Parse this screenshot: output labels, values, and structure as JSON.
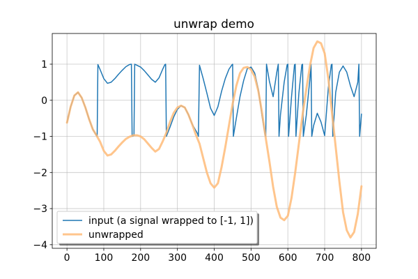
{
  "chart_data": {
    "type": "line",
    "title": "unwrap demo",
    "xlabel": "",
    "ylabel": "",
    "xlim": [
      -40,
      840
    ],
    "ylim": [
      -4.1,
      1.85
    ],
    "xticks": [
      0,
      100,
      200,
      300,
      400,
      500,
      600,
      700,
      800
    ],
    "yticks": [
      1,
      0,
      -1,
      -2,
      -3,
      -4
    ],
    "xtick_labels": [
      "0",
      "100",
      "200",
      "300",
      "400",
      "500",
      "600",
      "700",
      "800"
    ],
    "ytick_labels": [
      "1",
      "0",
      "−1",
      "−2",
      "−3",
      "−4"
    ],
    "grid": true,
    "legend_position": "lower-left",
    "series": [
      {
        "name": "input (a signal wrapped to [-1, 1])",
        "color": "#1f77b4",
        "x": [
          0,
          10,
          20,
          30,
          40,
          50,
          60,
          70,
          80,
          82,
          84,
          90,
          100,
          110,
          120,
          130,
          140,
          150,
          160,
          170,
          175,
          177,
          180,
          182,
          184,
          190,
          200,
          210,
          220,
          230,
          240,
          250,
          260,
          266,
          268,
          270,
          280,
          290,
          300,
          310,
          320,
          330,
          340,
          355,
          357,
          360,
          370,
          380,
          390,
          400,
          410,
          420,
          430,
          440,
          448,
          450,
          452,
          460,
          470,
          480,
          490,
          500,
          510,
          520,
          530,
          538,
          540,
          542,
          550,
          560,
          570,
          574,
          576,
          580,
          590,
          598,
          600,
          602,
          610,
          618,
          620,
          622,
          630,
          638,
          640,
          642,
          650,
          660,
          663,
          665,
          670,
          680,
          690,
          700,
          710,
          718,
          720,
          722,
          730,
          740,
          750,
          760,
          770,
          780,
          790,
          793,
          795,
          800
        ],
        "y": [
          -0.62,
          -0.18,
          0.13,
          0.22,
          0.07,
          -0.2,
          -0.52,
          -0.8,
          -0.97,
          -1.0,
          0.99,
          0.85,
          0.6,
          0.47,
          0.5,
          0.6,
          0.72,
          0.83,
          0.93,
          0.99,
          1.0,
          -1.0,
          -0.99,
          -0.98,
          1.0,
          0.97,
          0.92,
          0.82,
          0.7,
          0.58,
          0.5,
          0.62,
          0.86,
          0.99,
          1.0,
          -1.0,
          -0.74,
          -0.46,
          -0.25,
          -0.15,
          -0.2,
          -0.4,
          -0.66,
          -0.93,
          -1.0,
          0.97,
          0.6,
          0.2,
          -0.22,
          -0.42,
          -0.18,
          0.25,
          0.6,
          0.86,
          0.98,
          1.0,
          -1.0,
          -0.5,
          0.1,
          0.55,
          0.88,
          0.92,
          0.75,
          0.3,
          -0.45,
          -0.95,
          -1.0,
          1.0,
          0.52,
          0.1,
          0.78,
          1.0,
          -1.0,
          -0.4,
          0.5,
          0.98,
          1.0,
          -1.0,
          0.1,
          0.98,
          1.0,
          -1.0,
          0.2,
          0.98,
          1.0,
          -1.0,
          -0.42,
          0.6,
          1.0,
          -1.0,
          -0.7,
          -0.36,
          -0.6,
          -0.98,
          0.35,
          0.98,
          1.0,
          -1.0,
          0.22,
          0.78,
          0.95,
          0.78,
          0.4,
          0.1,
          0.5,
          1.0,
          -1.0,
          -0.38
        ]
      },
      {
        "name": "unwrapped",
        "color": "#ffbb78",
        "x": [
          0,
          10,
          20,
          30,
          40,
          50,
          60,
          70,
          80,
          90,
          100,
          110,
          120,
          130,
          140,
          150,
          160,
          170,
          180,
          190,
          200,
          210,
          220,
          230,
          240,
          250,
          260,
          270,
          280,
          290,
          300,
          310,
          320,
          330,
          340,
          350,
          360,
          370,
          380,
          390,
          400,
          410,
          420,
          430,
          440,
          450,
          460,
          470,
          480,
          490,
          500,
          510,
          520,
          530,
          540,
          550,
          560,
          570,
          580,
          590,
          600,
          610,
          620,
          630,
          640,
          650,
          660,
          670,
          680,
          690,
          700,
          710,
          720,
          730,
          740,
          750,
          760,
          770,
          780,
          790,
          800
        ],
        "y": [
          -0.62,
          -0.18,
          0.13,
          0.22,
          0.07,
          -0.2,
          -0.52,
          -0.8,
          -0.97,
          -1.15,
          -1.4,
          -1.53,
          -1.5,
          -1.4,
          -1.28,
          -1.17,
          -1.07,
          -1.01,
          -0.97,
          -0.97,
          -1.0,
          -1.08,
          -1.2,
          -1.32,
          -1.42,
          -1.35,
          -1.14,
          -0.9,
          -0.6,
          -0.35,
          -0.2,
          -0.15,
          -0.2,
          -0.4,
          -0.66,
          -0.95,
          -1.2,
          -1.6,
          -2.0,
          -2.3,
          -2.42,
          -2.3,
          -1.85,
          -1.3,
          -0.7,
          -0.1,
          0.4,
          0.75,
          0.9,
          0.92,
          0.85,
          0.65,
          0.25,
          -0.35,
          -1.05,
          -1.7,
          -2.4,
          -2.95,
          -3.25,
          -3.32,
          -3.2,
          -2.7,
          -2.0,
          -1.2,
          -0.4,
          0.3,
          0.95,
          1.45,
          1.63,
          1.58,
          1.3,
          0.6,
          -0.35,
          -1.3,
          -2.25,
          -3.1,
          -3.6,
          -3.8,
          -3.65,
          -3.15,
          -2.38
        ]
      }
    ]
  }
}
